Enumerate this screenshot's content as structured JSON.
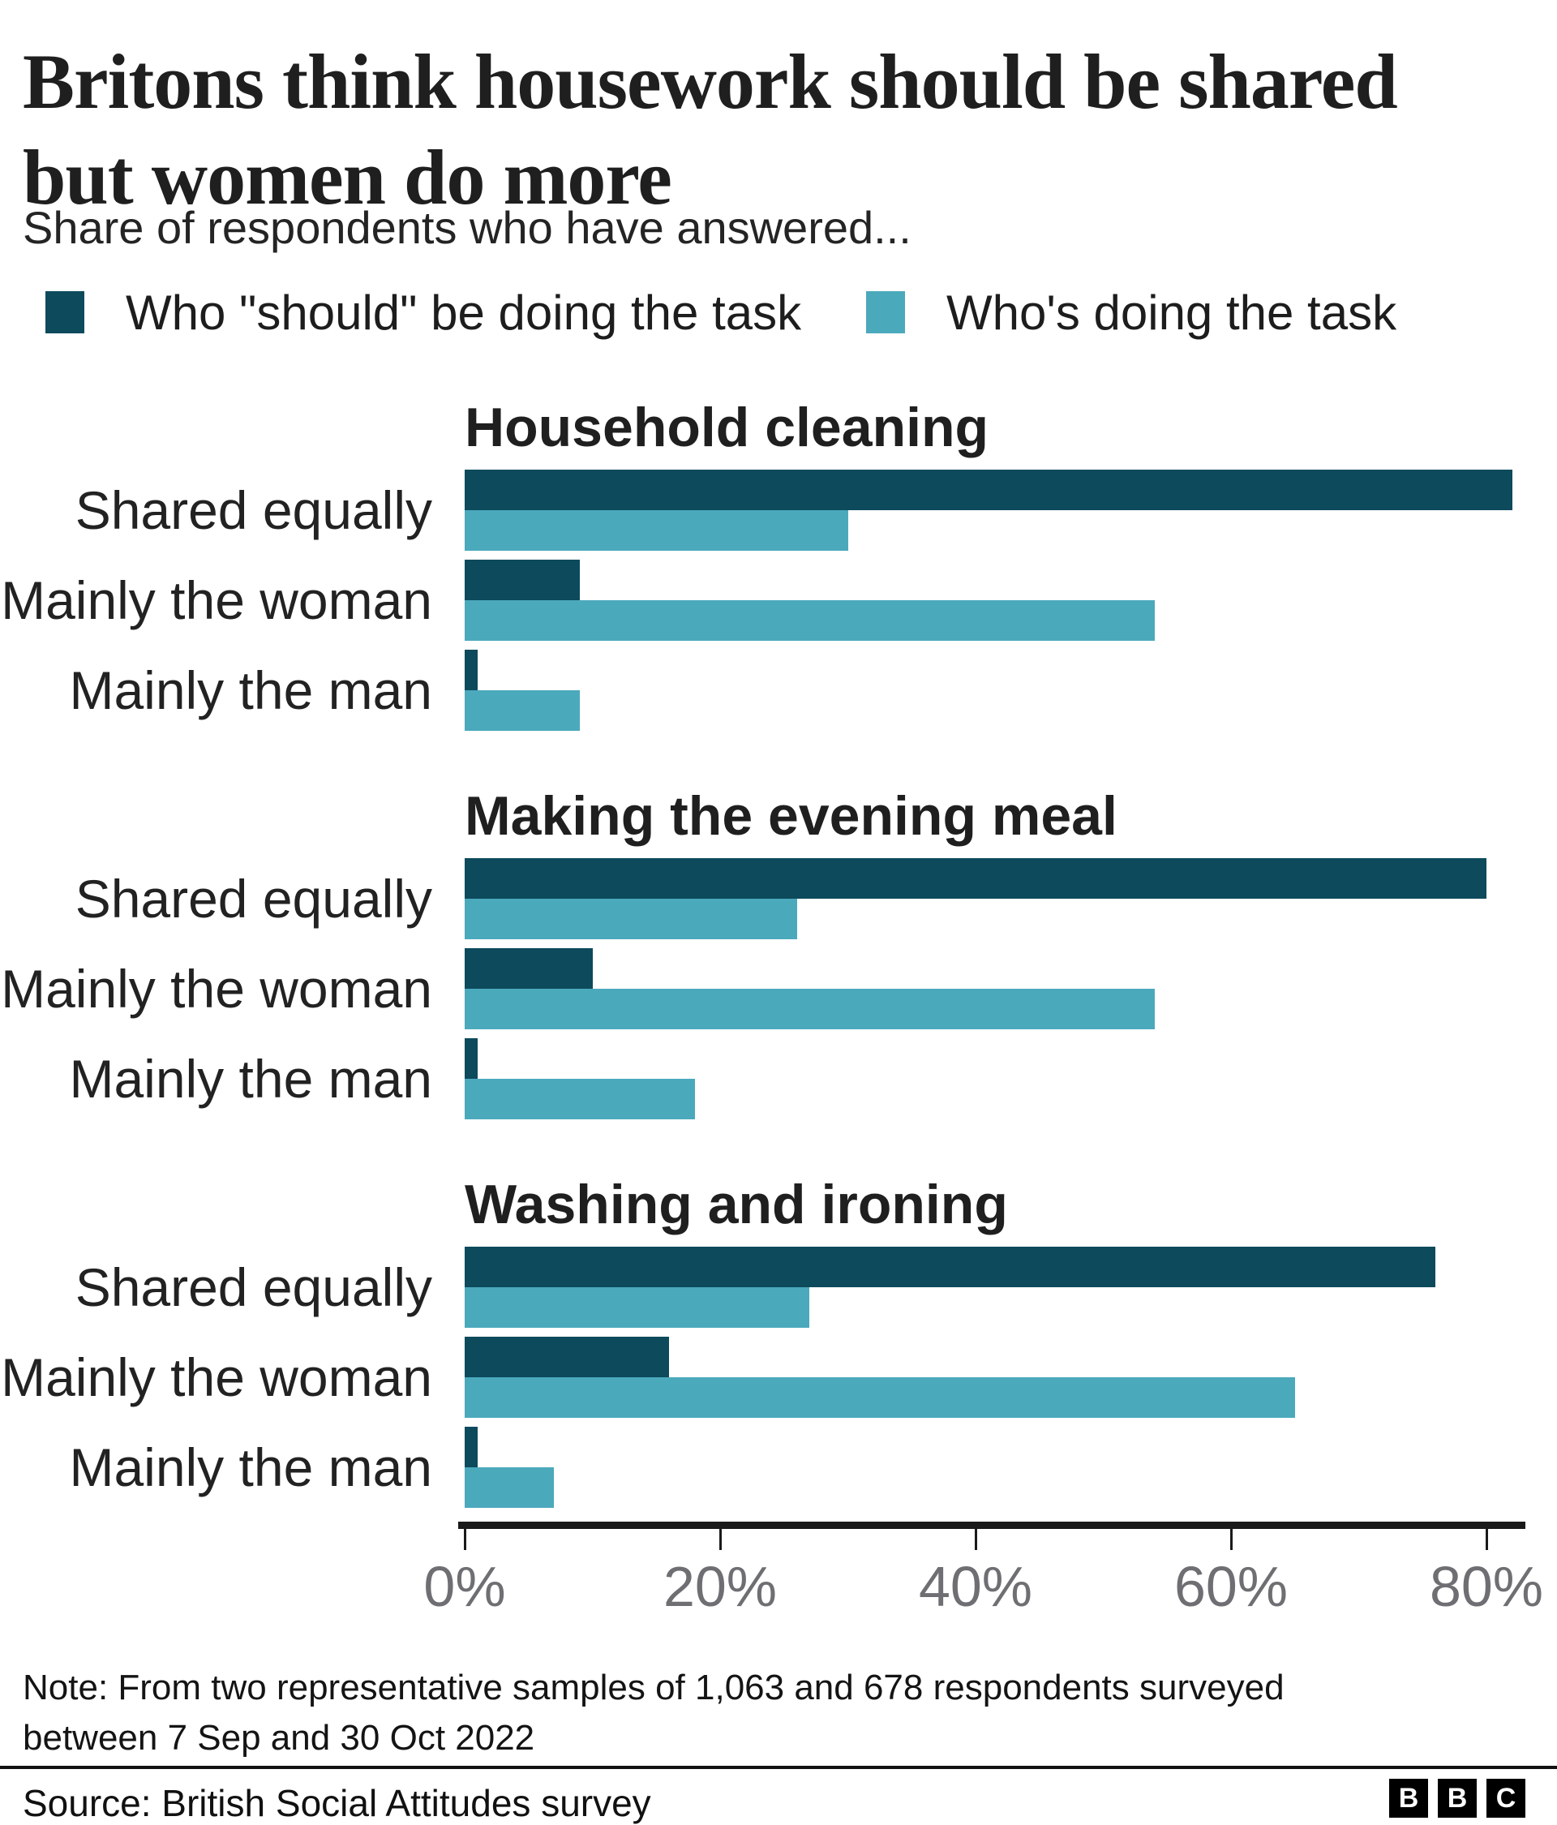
{
  "header": {
    "title_line1": "Britons think housework should be shared",
    "title_line2": "but women do more",
    "subtitle": "Share of respondents who have answered..."
  },
  "legend": [
    {
      "label": "Who \"should\" be doing the task",
      "color": "#0c4a5c"
    },
    {
      "label": "Who's doing the task",
      "color": "#4ba9bc"
    }
  ],
  "chart_data": {
    "type": "bar",
    "orientation": "horizontal",
    "categories": [
      "Shared equally",
      "Mainly the woman",
      "Mainly the man"
    ],
    "colors": {
      "should": "#0c4a5c",
      "doing": "#4ba9bc"
    },
    "sections": [
      {
        "title": "Household cleaning",
        "series": [
          {
            "name": "Who \"should\" be doing the task",
            "values": [
              82,
              9,
              1
            ]
          },
          {
            "name": "Who's doing the task",
            "values": [
              30,
              54,
              9
            ]
          }
        ]
      },
      {
        "title": "Making the evening meal",
        "series": [
          {
            "name": "Who \"should\" be doing the task",
            "values": [
              80,
              10,
              1
            ]
          },
          {
            "name": "Who's doing the task",
            "values": [
              26,
              54,
              18
            ]
          }
        ]
      },
      {
        "title": "Washing and ironing",
        "series": [
          {
            "name": "Who \"should\" be doing the task",
            "values": [
              76,
              16,
              1
            ]
          },
          {
            "name": "Who's doing the task",
            "values": [
              27,
              65,
              7
            ]
          }
        ]
      }
    ],
    "x_axis": {
      "tick_labels": [
        "0%",
        "20%",
        "40%",
        "60%",
        "80%"
      ],
      "tick_values": [
        0,
        20,
        40,
        60,
        80
      ],
      "range": [
        0,
        83
      ],
      "grid": false
    },
    "legend_position": "top"
  },
  "footer": {
    "note_line1": "Note: From two representative samples of 1,063 and 678 respondents surveyed",
    "note_line2": "between 7 Sep and 30 Oct 2022",
    "source": "Source: British Social Attitudes survey",
    "logo_letters": [
      "B",
      "B",
      "C"
    ]
  }
}
